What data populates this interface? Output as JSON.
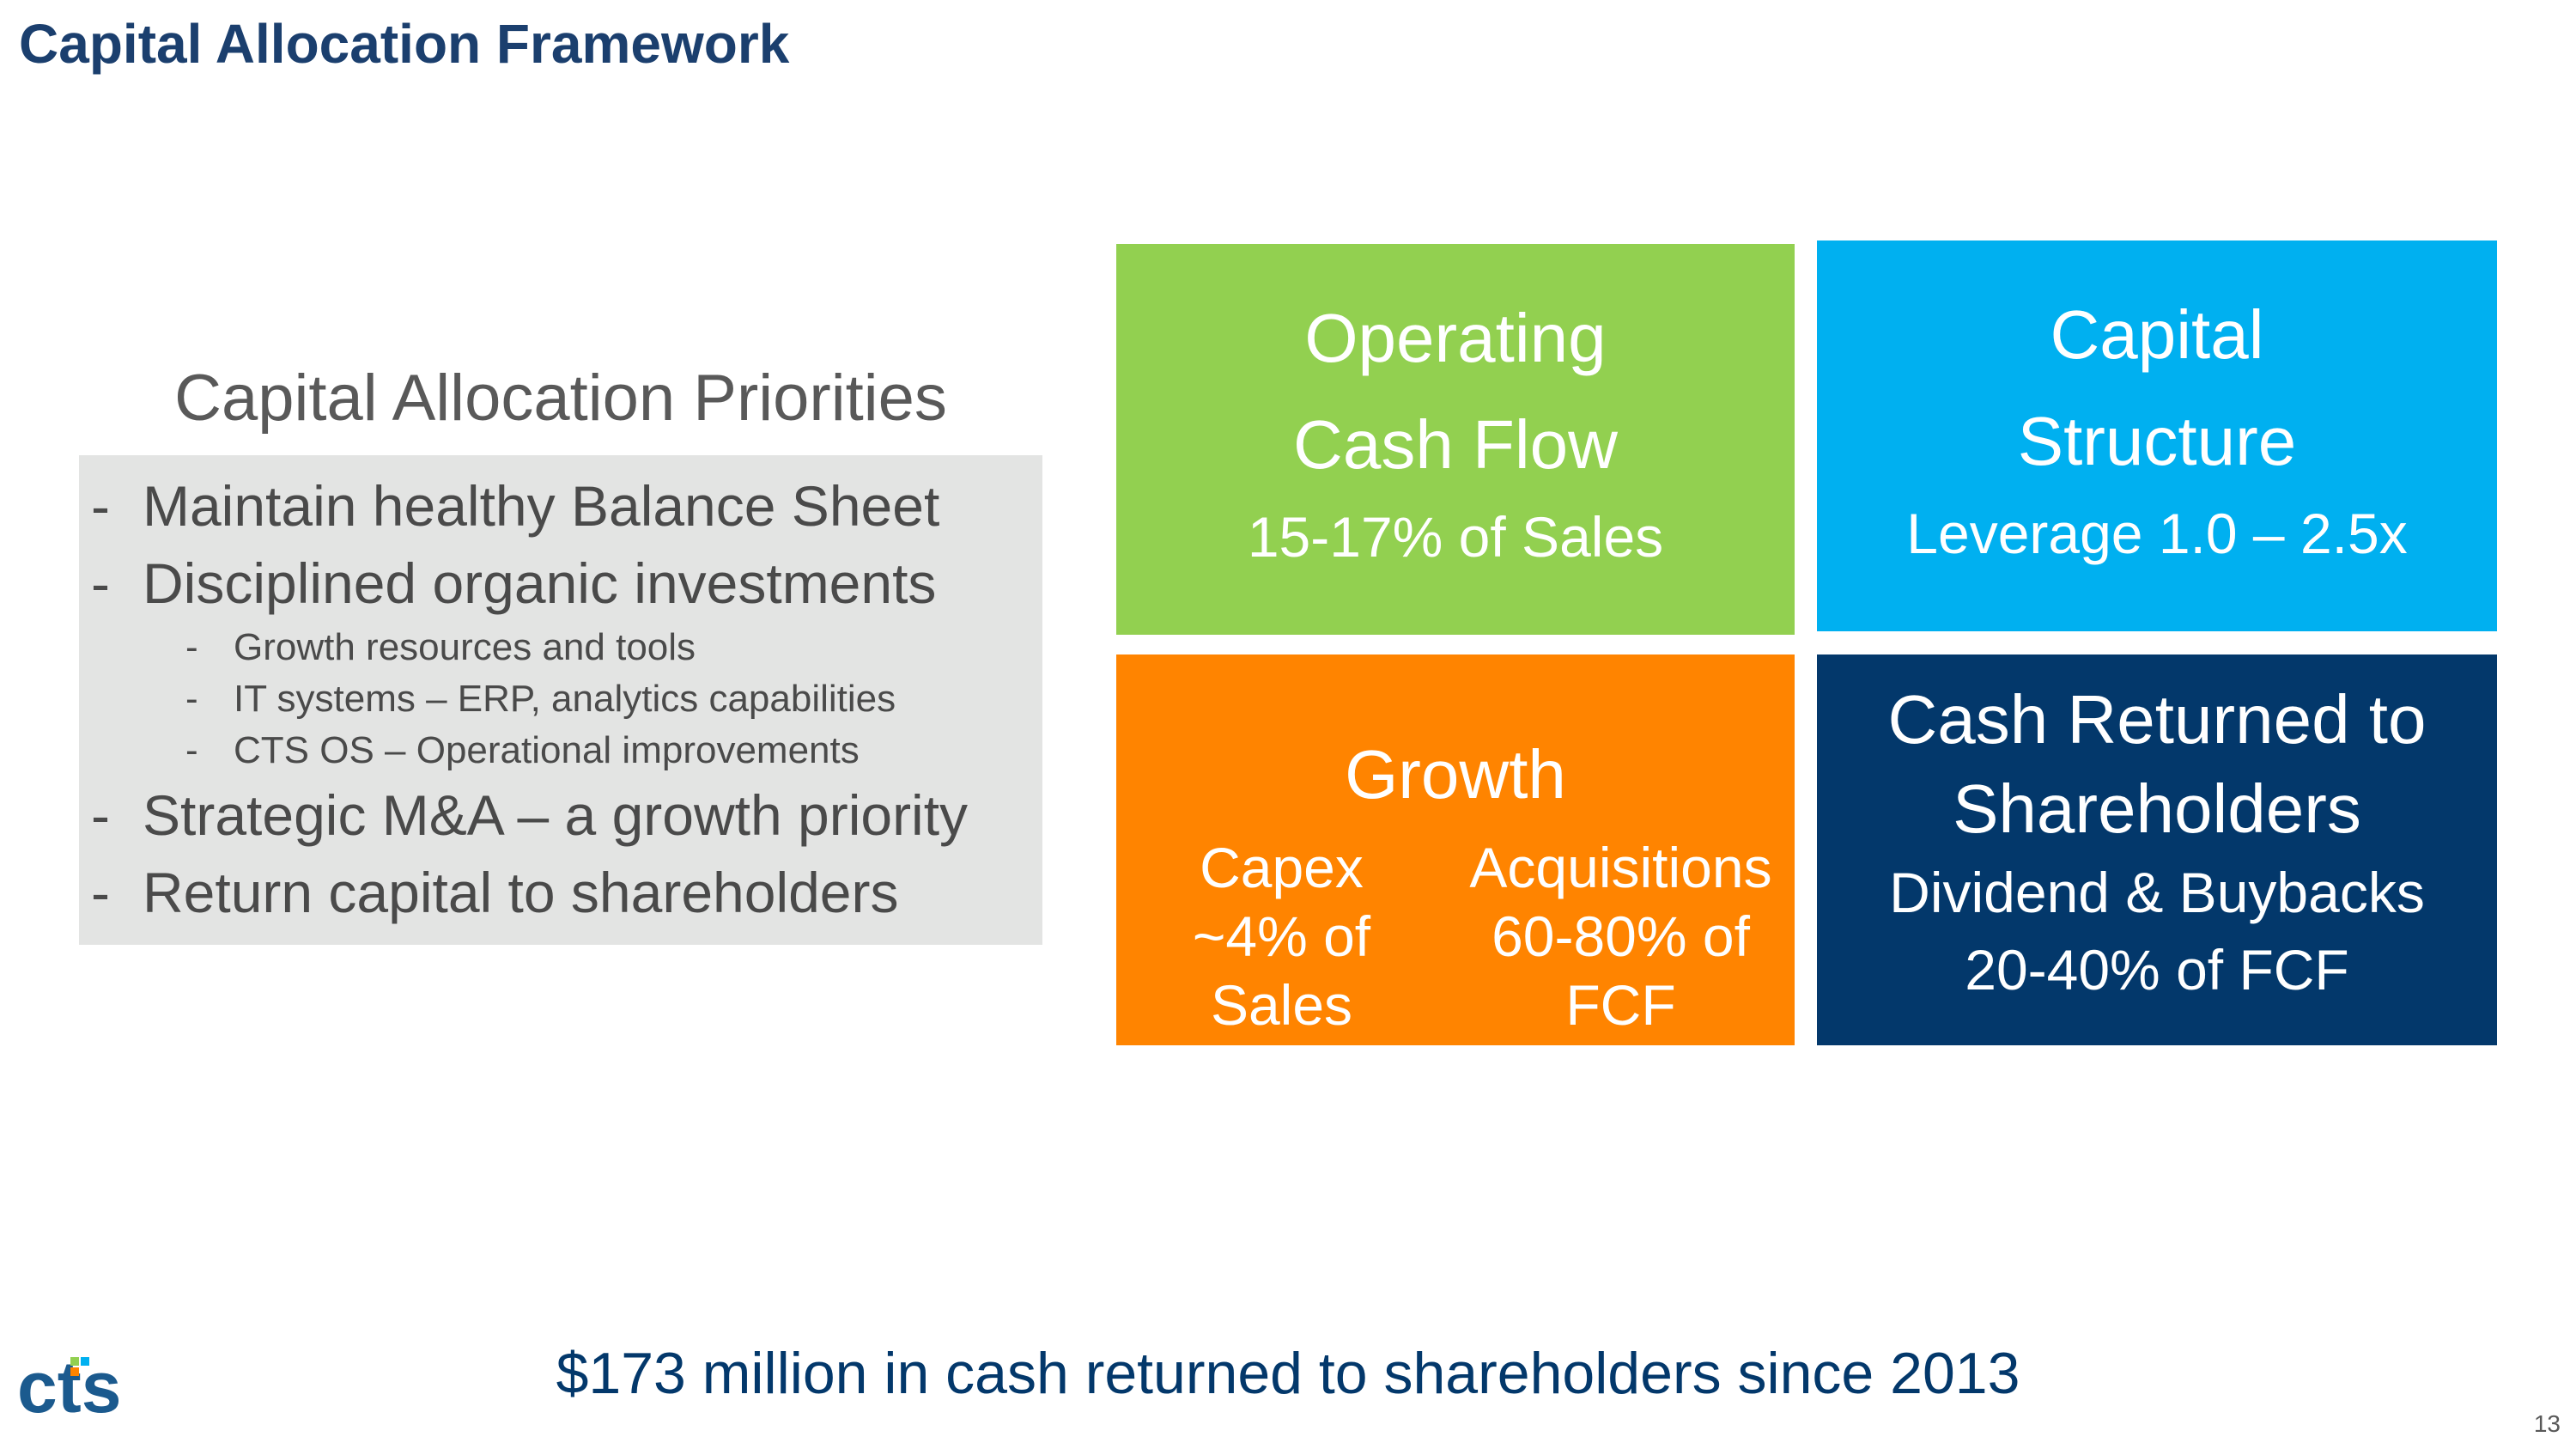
{
  "title": "Capital Allocation Framework",
  "priorities": {
    "heading": "Capital Allocation Priorities",
    "items": [
      "Maintain healthy Balance Sheet",
      "Disciplined organic investments",
      "Strategic M&A – a growth priority",
      "Return capital to shareholders"
    ],
    "sub_items": [
      "Growth resources and tools",
      "IT systems – ERP, analytics capabilities",
      "CTS OS – Operational improvements"
    ],
    "dash": "-"
  },
  "tiles": {
    "operating_cash_flow": {
      "title_line1": "Operating",
      "title_line2": "Cash Flow",
      "detail": "15-17% of Sales",
      "color": "#92d050"
    },
    "capital_structure": {
      "title_line1": "Capital",
      "title_line2": "Structure",
      "detail": "Leverage 1.0 – 2.5x",
      "color": "#00b0f0"
    },
    "growth": {
      "title": "Growth",
      "capex": [
        "Capex",
        "~4% of",
        "Sales"
      ],
      "acquisitions": [
        "Acquisitions",
        "60-80% of",
        "FCF"
      ],
      "color": "#ff8400"
    },
    "cash_returned": {
      "title_line1": "Cash Returned to",
      "title_line2": "Shareholders",
      "detail_line1": "Dividend & Buybacks",
      "detail_line2": "20-40% of FCF",
      "color": "#03386b"
    }
  },
  "footer": {
    "statement": "$173 million in cash returned to shareholders since 2013",
    "logo_text": "cts",
    "page_number": "13"
  }
}
